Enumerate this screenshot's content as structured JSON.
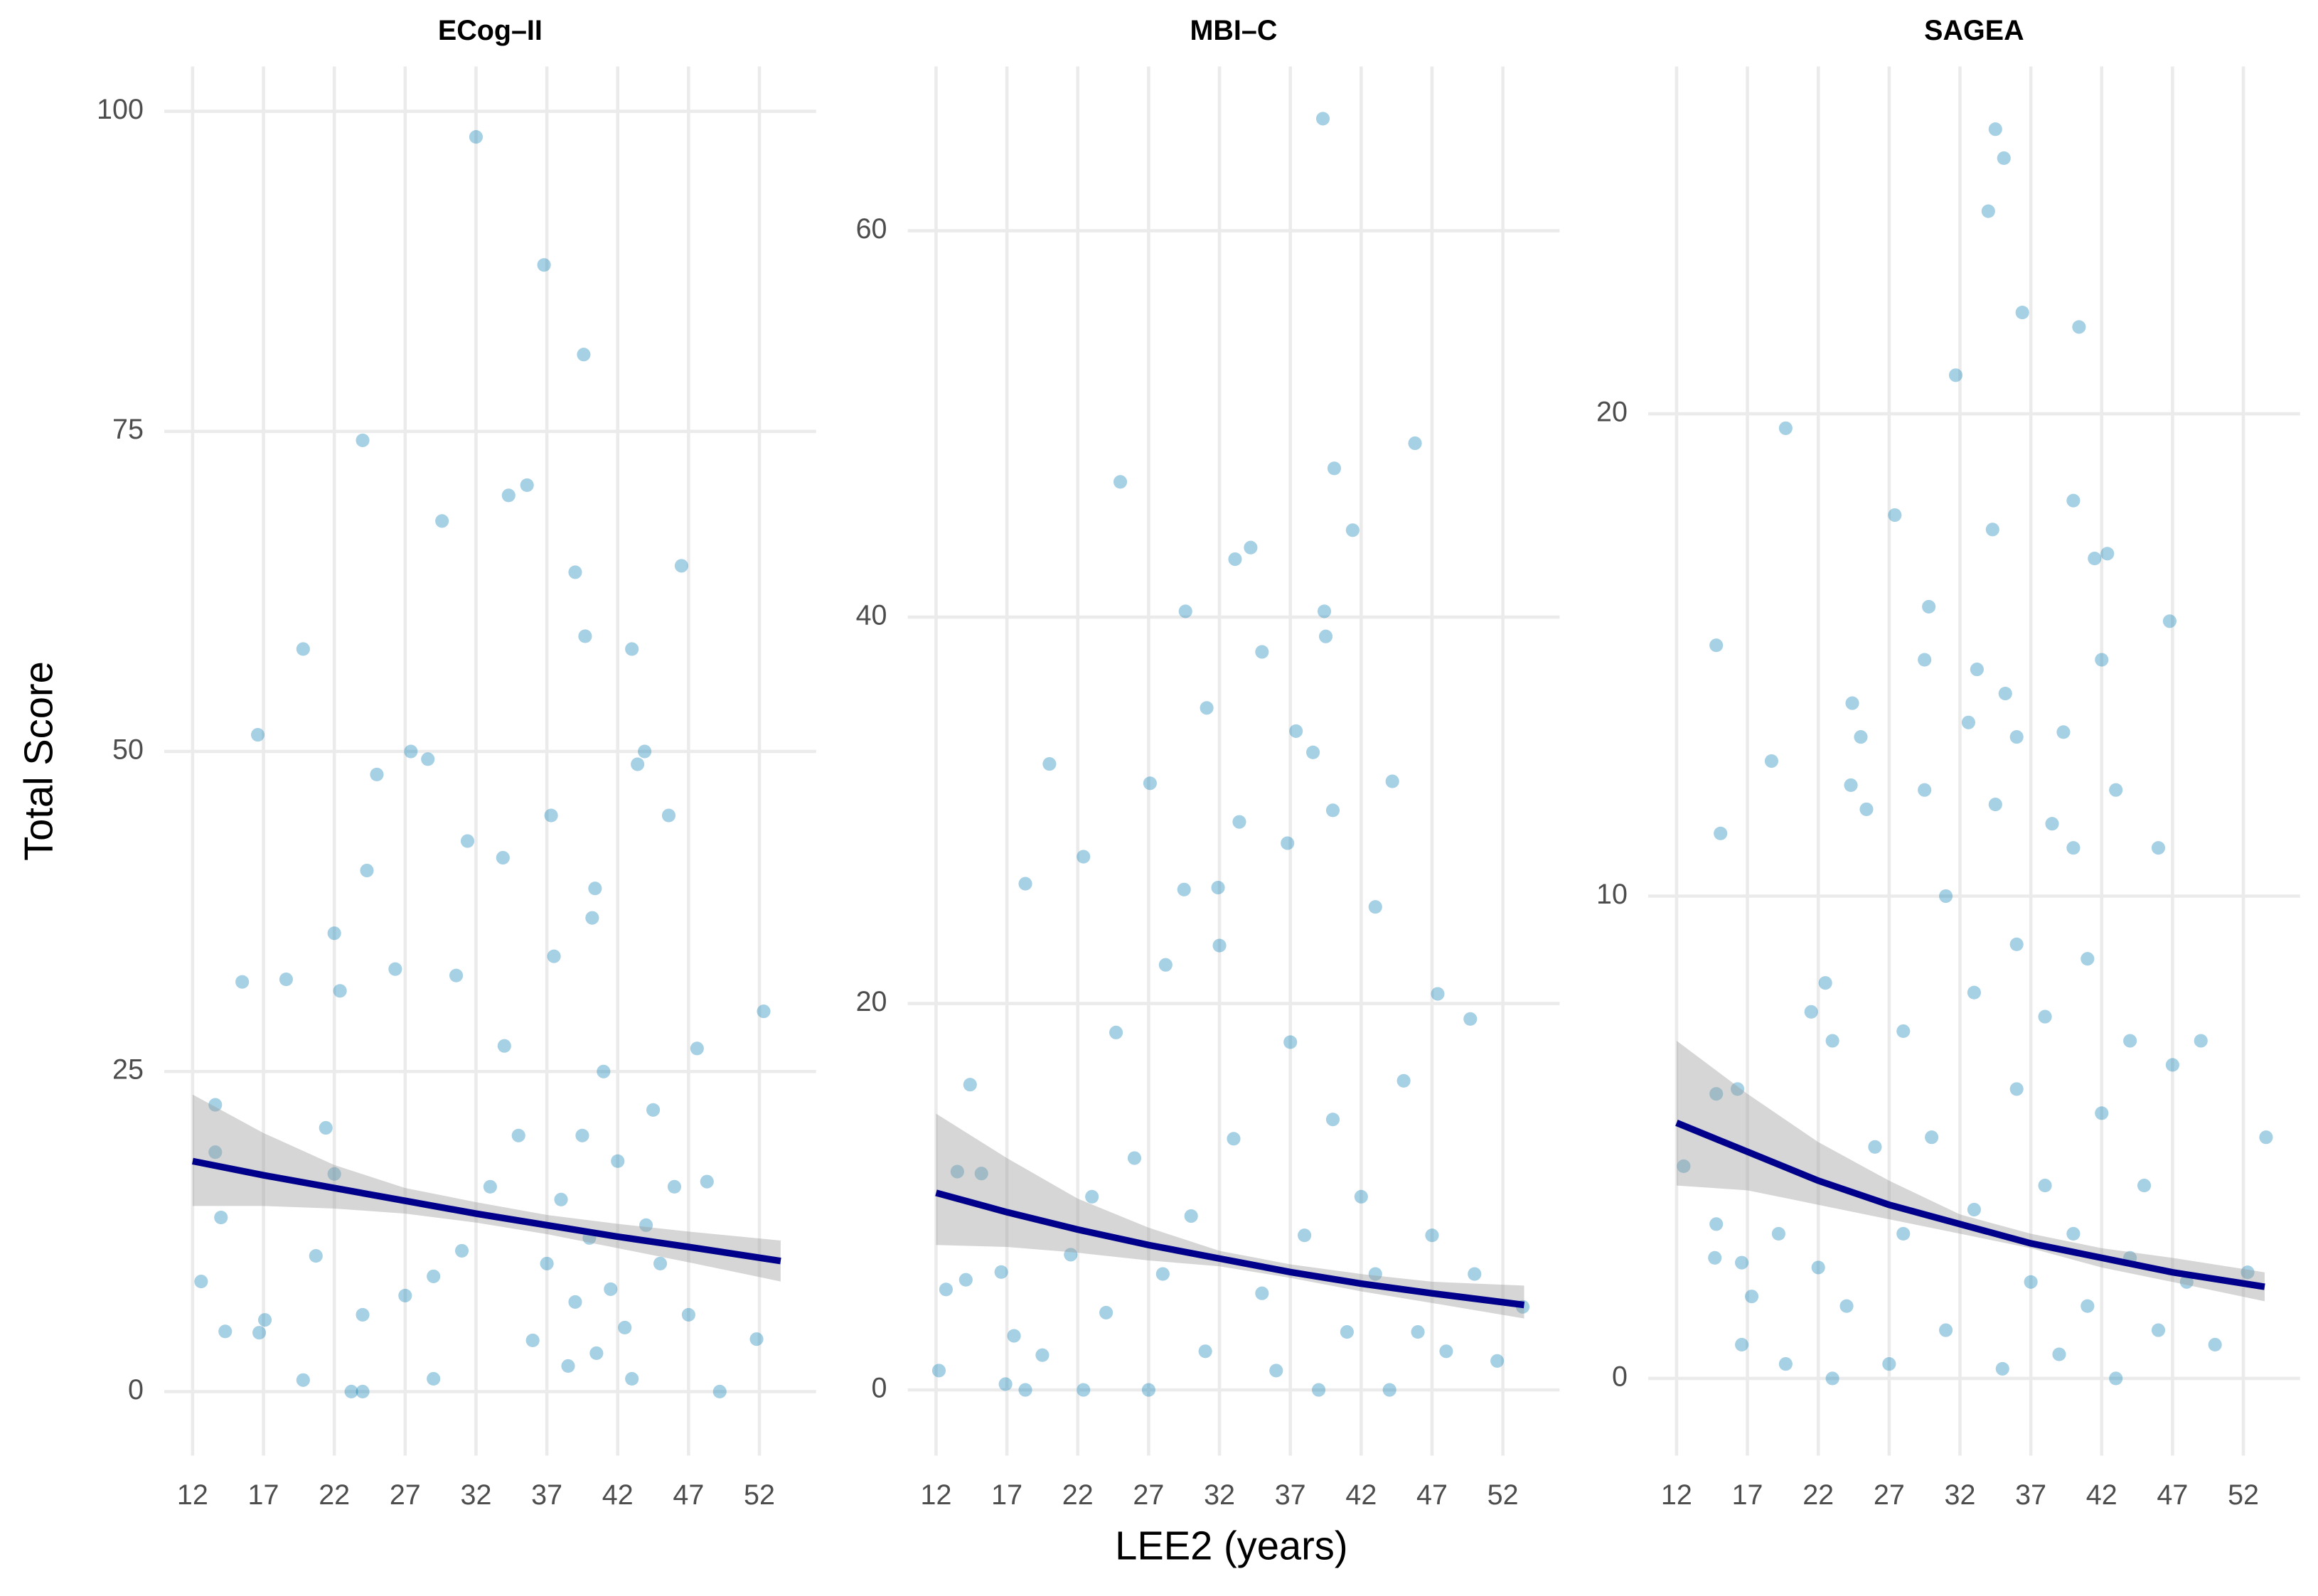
{
  "chart_data": [
    {
      "type": "scatter",
      "title": "ECog–II",
      "ylabel": "Total Score",
      "color": "#0077b3",
      "fit_color": "#00008b",
      "band_color": "#999999",
      "grid": true,
      "xlim": [
        10,
        56
      ],
      "ylim": [
        -5,
        103.5
      ],
      "xticks": [
        12,
        17,
        22,
        27,
        32,
        37,
        42,
        47,
        52
      ],
      "yticks": [
        0,
        25,
        50,
        75,
        100
      ],
      "x": [
        32,
        36.8,
        39.6,
        24,
        34.3,
        35.6,
        29.6,
        46.5,
        39,
        39.7,
        43,
        19.8,
        16.6,
        27.4,
        28.6,
        25,
        43.4,
        43.9,
        45.6,
        37.3,
        24.3,
        31.4,
        33.9,
        40.4,
        22,
        30.6,
        15.5,
        18.6,
        22.4,
        26.3,
        52.3,
        13.6,
        13.6,
        14,
        12.6,
        14.3,
        16.7,
        17.1,
        19.8,
        20.7,
        21.4,
        22,
        23.2,
        24,
        24,
        27,
        29,
        31,
        33,
        35,
        36,
        37,
        38,
        38.5,
        39,
        39.5,
        40,
        40.5,
        41,
        41.5,
        42,
        42.5,
        43,
        44,
        44.5,
        45,
        46,
        47,
        47.6,
        48.3,
        49.2,
        51.8,
        29,
        34,
        37.5,
        40.2
      ],
      "y": [
        98,
        88,
        81,
        74.3,
        70,
        70.8,
        68,
        64.5,
        64,
        59,
        58,
        58,
        51.3,
        50,
        49.4,
        48.2,
        49,
        50,
        45,
        45,
        40.7,
        43,
        41.7,
        39.3,
        35.8,
        32.5,
        32,
        32.2,
        31.3,
        33,
        29.7,
        22.4,
        18.7,
        13.6,
        8.6,
        4.7,
        4.6,
        5.6,
        0.9,
        10.6,
        20.6,
        17,
        0,
        0,
        6,
        7.5,
        9,
        11,
        16,
        20,
        4,
        10,
        15,
        2,
        7,
        20,
        12,
        3,
        25,
        8,
        18,
        5,
        1,
        13,
        22,
        10,
        16,
        6,
        26.8,
        16.4,
        0,
        4.1,
        1,
        27,
        34,
        37
      ],
      "fit": {
        "x": [
          12,
          17,
          22,
          27,
          32,
          37,
          42,
          47,
          53.5
        ],
        "y": [
          18,
          16.9,
          15.9,
          14.9,
          13.9,
          13,
          12.1,
          11.3,
          10.2
        ],
        "lower": [
          14.5,
          14.5,
          14.3,
          13.9,
          13.2,
          12.3,
          11.2,
          10.1,
          8.6
        ],
        "upper": [
          23.2,
          20.2,
          17.7,
          15.9,
          14.8,
          13.8,
          13.1,
          12.5,
          11.8
        ]
      }
    },
    {
      "type": "scatter",
      "title": "MBI–C",
      "xlabel": "LEE2 (years)",
      "color": "#0077b3",
      "fit_color": "#00008b",
      "band_color": "#999999",
      "grid": true,
      "xlim": [
        10,
        56
      ],
      "ylim": [
        -3.4,
        68.5
      ],
      "xticks": [
        12,
        17,
        22,
        27,
        32,
        37,
        42,
        47,
        52
      ],
      "yticks": [
        0,
        20,
        40,
        60
      ],
      "x": [
        39.3,
        45.8,
        40.1,
        25,
        41.4,
        34.2,
        33.1,
        39.4,
        29.6,
        35,
        39.5,
        31.1,
        37.4,
        38.6,
        20,
        27.1,
        44.2,
        22.4,
        18.3,
        29.5,
        31.9,
        33.4,
        43,
        36.8,
        40,
        28.2,
        32,
        24.7,
        14.4,
        47.4,
        49.7,
        13.5,
        15.2,
        12.2,
        12.7,
        14.1,
        16.6,
        16.9,
        17.5,
        18.3,
        19.5,
        21.5,
        22.4,
        23,
        24,
        26,
        27,
        28,
        30,
        31,
        33,
        35,
        36,
        37,
        38,
        39,
        40,
        41,
        42,
        43,
        44,
        45,
        46,
        47,
        48,
        50,
        51.6,
        53.4
      ],
      "y": [
        65.8,
        49,
        47.7,
        47,
        44.5,
        43.6,
        43,
        40.3,
        40.3,
        38.2,
        39,
        35.3,
        34.1,
        33,
        32.4,
        31.4,
        31.5,
        27.6,
        26.2,
        25.9,
        26,
        29.4,
        25,
        28.3,
        30,
        22,
        23,
        18.5,
        15.8,
        20.5,
        19.2,
        11.3,
        11.2,
        1,
        5.2,
        5.7,
        6.1,
        0.3,
        2.8,
        0,
        1.8,
        7,
        0,
        10,
        4,
        12,
        0,
        6,
        9,
        2,
        13,
        5,
        1,
        18,
        8,
        0,
        14,
        3,
        10,
        6,
        0,
        16,
        3,
        8,
        2,
        6,
        1.5,
        4.3
      ],
      "fit": {
        "x": [
          12,
          17,
          22,
          27,
          32,
          37,
          42,
          47,
          53.5
        ],
        "y": [
          10.2,
          9.2,
          8.3,
          7.5,
          6.8,
          6.1,
          5.5,
          5,
          4.4
        ],
        "lower": [
          7.5,
          7.4,
          7.1,
          6.7,
          6.4,
          5.8,
          5.1,
          4.5,
          3.7
        ],
        "upper": [
          14.3,
          12,
          9.9,
          8.4,
          7.2,
          6.5,
          6,
          5.6,
          5.4
        ]
      }
    },
    {
      "type": "scatter",
      "title": "SAGEA",
      "color": "#0077b3",
      "fit_color": "#00008b",
      "band_color": "#999999",
      "grid": true,
      "xlim": [
        10,
        56
      ],
      "ylim": [
        -1.6,
        27.2
      ],
      "xticks": [
        12,
        17,
        22,
        27,
        32,
        37,
        42,
        47,
        52
      ],
      "yticks": [
        0,
        10,
        20
      ],
      "x": [
        34.5,
        35.1,
        34,
        36.4,
        40.4,
        31.7,
        19.7,
        40,
        34.3,
        27.4,
        41.5,
        42.4,
        29.8,
        46.8,
        14.8,
        33.2,
        35.2,
        24.4,
        25,
        29.5,
        32.6,
        36,
        39.3,
        42,
        18.7,
        24.3,
        29.5,
        25.4,
        34.5,
        15.1,
        43,
        38.5,
        40,
        46,
        31,
        22.5,
        21.5,
        23,
        28,
        33,
        36,
        38,
        41,
        44,
        14.8,
        16.3,
        12.5,
        14.8,
        14.7,
        16.6,
        17.3,
        16.6,
        19.2,
        19.7,
        22,
        23,
        24,
        26,
        27,
        28,
        30,
        31,
        33,
        35,
        36,
        37,
        38,
        39,
        40,
        41,
        42,
        43,
        44,
        45,
        46,
        47,
        48,
        49,
        50,
        52.3,
        53.6
      ],
      "y": [
        25.9,
        25.3,
        24.2,
        22.1,
        21.8,
        20.8,
        19.7,
        18.2,
        17.6,
        17.9,
        17,
        17.1,
        16,
        15.7,
        15.2,
        14.7,
        14.2,
        14,
        13.3,
        14.9,
        13.6,
        13.3,
        13.4,
        14.9,
        12.8,
        12.3,
        12.2,
        11.8,
        11.9,
        11.3,
        12.2,
        11.5,
        11,
        11,
        10,
        8.2,
        7.6,
        7,
        7.2,
        8,
        9,
        7.5,
        8.7,
        7,
        5.9,
        6,
        4.4,
        3.2,
        2.5,
        2.4,
        1.7,
        0.7,
        3,
        0.3,
        2.3,
        0,
        1.5,
        4.8,
        0.3,
        3,
        5,
        1,
        3.5,
        0.2,
        6,
        2,
        4,
        0.5,
        3,
        1.5,
        5.5,
        0,
        2.5,
        4,
        1,
        6.5,
        2,
        7,
        0.7,
        2.2,
        5
      ],
      "fit": {
        "x": [
          12,
          17,
          22,
          27,
          32,
          37,
          42,
          47,
          53.5
        ],
        "y": [
          5.3,
          4.7,
          4.1,
          3.6,
          3.2,
          2.8,
          2.5,
          2.2,
          1.9
        ],
        "lower": [
          4,
          3.9,
          3.6,
          3.3,
          3,
          2.7,
          2.3,
          2,
          1.6
        ],
        "upper": [
          7,
          5.9,
          4.9,
          4.1,
          3.4,
          3,
          2.7,
          2.5,
          2.2
        ]
      }
    }
  ]
}
